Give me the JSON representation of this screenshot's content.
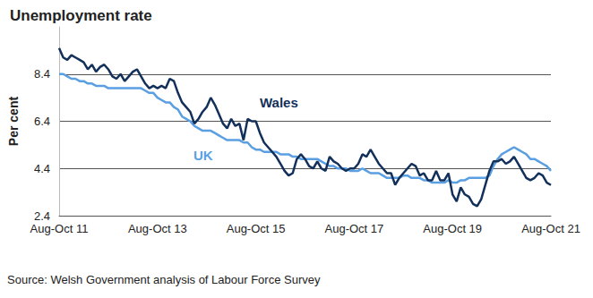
{
  "chart_data": {
    "type": "line",
    "title": "Unemployment rate",
    "y_label": "Per cent",
    "source": "Source: Welsh Government analysis of Labour Force Survey",
    "categories": [
      "Aug-Oct 11",
      null,
      null,
      null,
      null,
      null,
      null,
      null,
      null,
      null,
      null,
      null,
      null,
      null,
      null,
      null,
      null,
      null,
      null,
      null,
      null,
      null,
      null,
      null,
      "Aug-Oct 13",
      null,
      null,
      null,
      null,
      null,
      null,
      null,
      null,
      null,
      null,
      null,
      null,
      null,
      null,
      null,
      null,
      null,
      null,
      null,
      null,
      null,
      null,
      null,
      "Aug-Oct 15",
      null,
      null,
      null,
      null,
      null,
      null,
      null,
      null,
      null,
      null,
      null,
      null,
      null,
      null,
      null,
      null,
      null,
      null,
      null,
      null,
      null,
      null,
      null,
      "Aug-Oct 17",
      null,
      null,
      null,
      null,
      null,
      null,
      null,
      null,
      null,
      null,
      null,
      null,
      null,
      null,
      null,
      null,
      null,
      null,
      null,
      null,
      null,
      null,
      null,
      "Aug-Oct 19",
      null,
      null,
      null,
      null,
      null,
      null,
      null,
      null,
      null,
      null,
      null,
      null,
      null,
      null,
      null,
      null,
      null,
      null,
      null,
      null,
      null,
      null,
      null,
      "Aug-Oct 21"
    ],
    "series": [
      {
        "name": "UK",
        "color": "#5b9fe3",
        "values": [
          8.4,
          8.4,
          8.3,
          8.2,
          8.2,
          8.1,
          8.1,
          8.0,
          8.0,
          7.9,
          7.9,
          7.9,
          7.8,
          7.8,
          7.8,
          7.8,
          7.8,
          7.8,
          7.8,
          7.8,
          7.8,
          7.7,
          7.6,
          7.6,
          7.4,
          7.3,
          7.2,
          7.2,
          7.0,
          6.9,
          6.6,
          6.5,
          6.4,
          6.2,
          6.1,
          6.0,
          6.0,
          6.0,
          5.9,
          5.8,
          5.7,
          5.6,
          5.6,
          5.6,
          5.6,
          5.5,
          5.5,
          5.3,
          5.2,
          5.2,
          5.1,
          5.1,
          5.1,
          5.1,
          5.0,
          5.0,
          5.0,
          4.9,
          4.9,
          4.8,
          4.8,
          4.8,
          4.8,
          4.8,
          4.7,
          4.6,
          4.5,
          4.5,
          4.4,
          4.4,
          4.4,
          4.3,
          4.3,
          4.3,
          4.4,
          4.3,
          4.2,
          4.2,
          4.2,
          4.1,
          4.0,
          4.0,
          4.0,
          4.0,
          4.1,
          4.1,
          4.0,
          4.0,
          4.0,
          3.9,
          3.9,
          3.8,
          3.8,
          3.8,
          3.8,
          3.9,
          3.8,
          3.8,
          3.9,
          3.9,
          4.0,
          4.0,
          4.0,
          4.0,
          4.0,
          4.1,
          4.5,
          4.8,
          5.0,
          5.1,
          5.2,
          5.3,
          5.2,
          5.1,
          5.0,
          4.8,
          4.8,
          4.7,
          4.6,
          4.5,
          4.3
        ]
      },
      {
        "name": "Wales",
        "color": "#12305a",
        "values": [
          9.5,
          9.1,
          9.0,
          9.2,
          9.1,
          9.0,
          8.9,
          8.6,
          8.8,
          8.5,
          8.7,
          8.8,
          8.6,
          8.3,
          8.2,
          8.4,
          8.1,
          8.3,
          8.5,
          8.6,
          8.3,
          8.0,
          7.8,
          7.9,
          7.8,
          7.9,
          7.8,
          8.2,
          8.1,
          7.6,
          7.2,
          7.0,
          6.8,
          6.3,
          6.5,
          6.8,
          7.0,
          7.4,
          7.1,
          6.7,
          6.3,
          6.1,
          6.5,
          6.2,
          6.3,
          5.6,
          6.5,
          6.4,
          6.4,
          5.9,
          5.5,
          5.3,
          5.1,
          4.9,
          4.6,
          4.3,
          4.1,
          4.2,
          4.8,
          5.0,
          4.8,
          4.5,
          4.4,
          4.7,
          4.4,
          4.3,
          4.9,
          4.7,
          4.6,
          4.4,
          4.3,
          4.4,
          4.4,
          4.6,
          5.0,
          4.9,
          5.2,
          4.9,
          4.6,
          4.4,
          4.2,
          4.2,
          3.7,
          4.0,
          4.2,
          4.4,
          4.6,
          4.5,
          4.1,
          4.2,
          3.9,
          3.9,
          4.3,
          3.9,
          3.9,
          4.2,
          3.3,
          3.0,
          3.6,
          3.3,
          3.2,
          2.9,
          2.8,
          3.1,
          3.7,
          4.3,
          4.7,
          4.7,
          4.8,
          4.6,
          4.7,
          4.9,
          4.6,
          4.3,
          4.0,
          3.9,
          4.0,
          4.2,
          4.1,
          3.8,
          3.7
        ]
      }
    ],
    "ylim": [
      2.4,
      10.4
    ],
    "yticks": [
      2.4,
      4.4,
      6.4,
      8.4
    ],
    "grid": true
  }
}
